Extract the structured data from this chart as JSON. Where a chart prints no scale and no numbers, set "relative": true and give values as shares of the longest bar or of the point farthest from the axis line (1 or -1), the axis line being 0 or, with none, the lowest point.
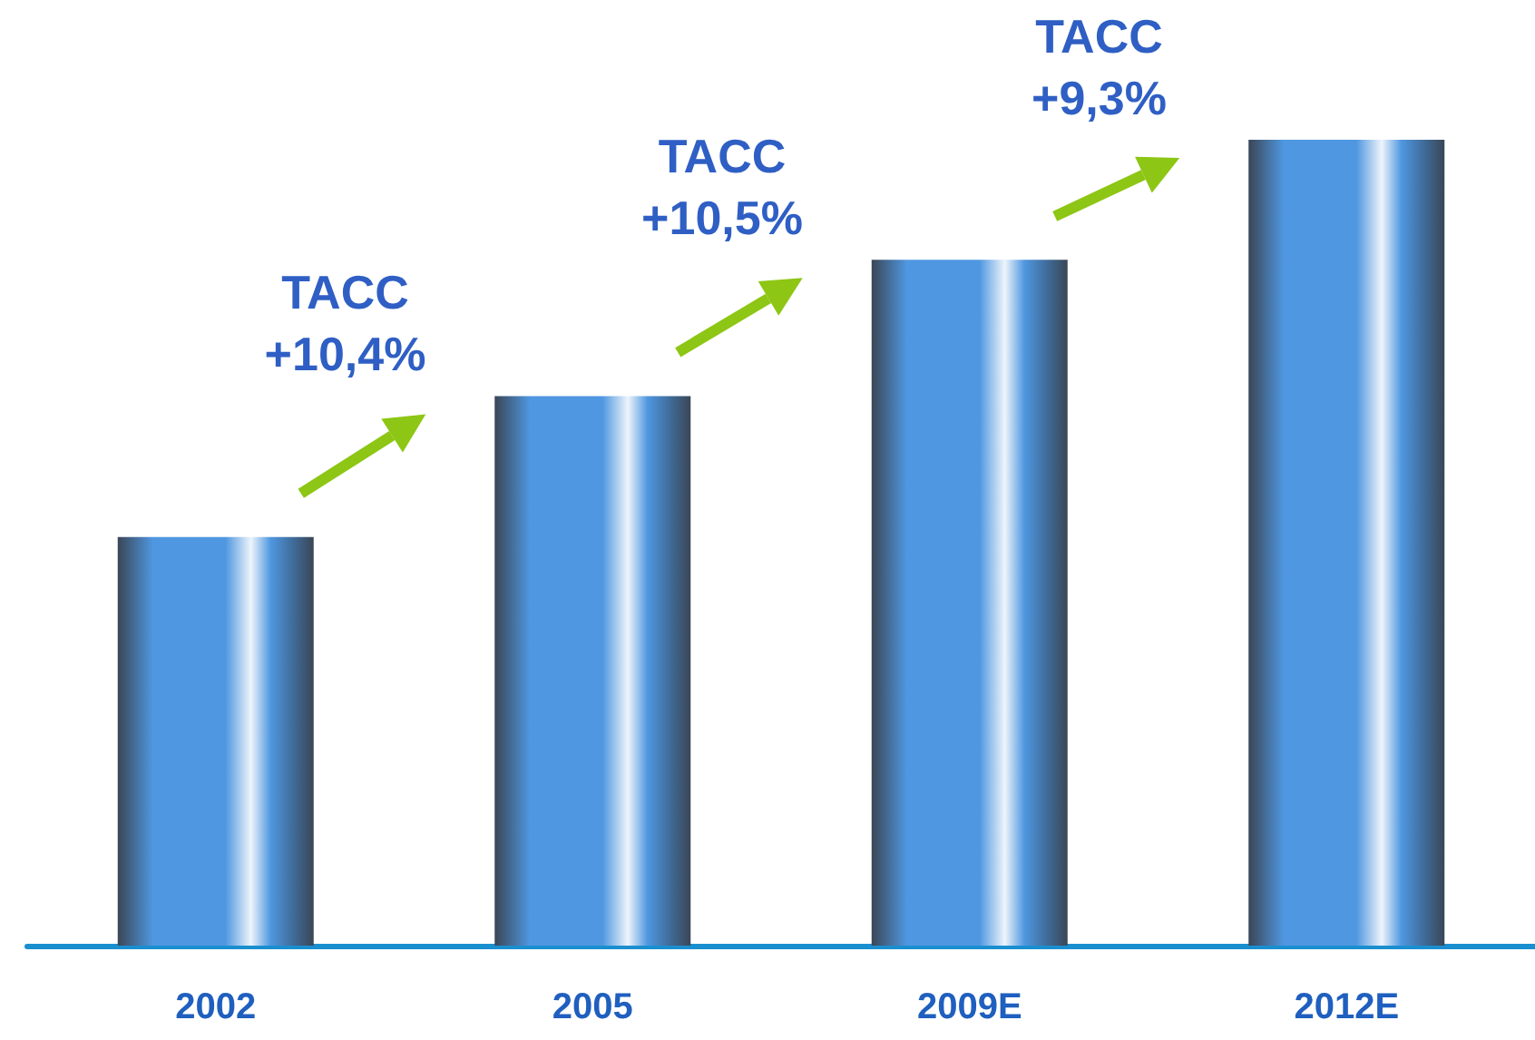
{
  "chart_data": {
    "type": "bar",
    "relative": true,
    "categories": [
      "2002",
      "2005",
      "2009E",
      "2012E"
    ],
    "values": [
      0.507,
      0.682,
      0.851,
      1
    ],
    "color": "#4f97e0",
    "annotations": [
      "TACC\n+10,4%",
      "TACC\n+10,5%",
      "TACC\n+9,3%"
    ]
  }
}
